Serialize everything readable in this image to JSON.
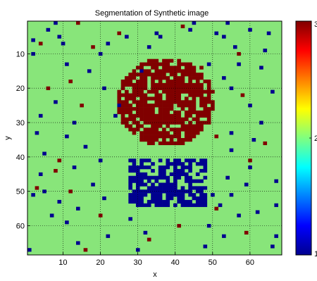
{
  "chart_data": {
    "type": "heatmap",
    "title": "Segmentation of Synthetic image",
    "xlabel": "x",
    "ylabel": "y",
    "xlim": [
      0.5,
      68.5
    ],
    "ylim": [
      0.5,
      68.5
    ],
    "y_reversed": true,
    "xticks": [
      10,
      20,
      30,
      40,
      50,
      60
    ],
    "yticks": [
      10,
      20,
      30,
      40,
      50,
      60
    ],
    "grid": true,
    "colormap": "jet",
    "clim": [
      1,
      3
    ],
    "colorbar_ticks": [
      1,
      2,
      3
    ],
    "colorbar_tick_labels": [
      "1",
      "2",
      "3"
    ],
    "classes": [
      {
        "value": 1,
        "color": "#00008f"
      },
      {
        "value": 2,
        "color": "#88e57a"
      },
      {
        "value": 3,
        "color": "#800000"
      }
    ],
    "grid_size": [
      68,
      68
    ],
    "background_value": 2,
    "regions": [
      {
        "shape": "disc",
        "value": 3,
        "center": [
          37.5,
          24
        ],
        "radius": 13,
        "fill_fraction": 0.8
      },
      {
        "shape": "rect",
        "value": 1,
        "x": [
          28,
          48
        ],
        "y": [
          41,
          54
        ],
        "fill_fraction": 0.7
      }
    ],
    "noise_pixels_value_1": [
      [
        8,
        1
      ],
      [
        45,
        1
      ],
      [
        54,
        1
      ],
      [
        6,
        3
      ],
      [
        44,
        3
      ],
      [
        60,
        3
      ],
      [
        35,
        4
      ],
      [
        51,
        4
      ],
      [
        9,
        5
      ],
      [
        27,
        5
      ],
      [
        36,
        5
      ],
      [
        53,
        5
      ],
      [
        65,
        4
      ],
      [
        2,
        6
      ],
      [
        10,
        7
      ],
      [
        22,
        7
      ],
      [
        33,
        8
      ],
      [
        56,
        8
      ],
      [
        64,
        9
      ],
      [
        20,
        10
      ],
      [
        2,
        10
      ],
      [
        49,
        13
      ],
      [
        11,
        13
      ],
      [
        17,
        15
      ],
      [
        31,
        15
      ],
      [
        57,
        13
      ],
      [
        63,
        14
      ],
      [
        53,
        17
      ],
      [
        55,
        20
      ],
      [
        66,
        21
      ],
      [
        21,
        20
      ],
      [
        8,
        24
      ],
      [
        25,
        25
      ],
      [
        60,
        25
      ],
      [
        4,
        28
      ],
      [
        24,
        28
      ],
      [
        13,
        30
      ],
      [
        63,
        30
      ],
      [
        3,
        33
      ],
      [
        55,
        33
      ],
      [
        11,
        34
      ],
      [
        61,
        35
      ],
      [
        16,
        37
      ],
      [
        55,
        38
      ],
      [
        5,
        39
      ],
      [
        20,
        41
      ],
      [
        13,
        43
      ],
      [
        48,
        42
      ],
      [
        60,
        43
      ],
      [
        4,
        45
      ],
      [
        54,
        46
      ],
      [
        67,
        47
      ],
      [
        18,
        48
      ],
      [
        59,
        48
      ],
      [
        5,
        50
      ],
      [
        2,
        51
      ],
      [
        50,
        51
      ],
      [
        21,
        52
      ],
      [
        55,
        51
      ],
      [
        9,
        53
      ],
      [
        67,
        54
      ],
      [
        14,
        55
      ],
      [
        52,
        54
      ],
      [
        62,
        56
      ],
      [
        7,
        57
      ],
      [
        28,
        58
      ],
      [
        57,
        57
      ],
      [
        11,
        59
      ],
      [
        49,
        60
      ],
      [
        32,
        62
      ],
      [
        22,
        63
      ],
      [
        53,
        63
      ],
      [
        67,
        63
      ],
      [
        14,
        65
      ],
      [
        48,
        66
      ],
      [
        1,
        67
      ],
      [
        30,
        67
      ],
      [
        66,
        66
      ]
    ],
    "noise_pixels_value_3": [
      [
        14,
        1
      ],
      [
        42,
        2
      ],
      [
        25,
        4
      ],
      [
        4,
        7
      ],
      [
        18,
        8
      ],
      [
        57,
        10
      ],
      [
        47,
        14
      ],
      [
        12,
        18
      ],
      [
        6,
        20
      ],
      [
        58,
        22
      ],
      [
        15,
        25
      ],
      [
        44,
        31
      ],
      [
        51,
        34
      ],
      [
        64,
        36
      ],
      [
        9,
        41
      ],
      [
        60,
        41
      ],
      [
        8,
        44
      ],
      [
        3,
        49
      ],
      [
        12,
        50
      ],
      [
        51,
        55
      ],
      [
        20,
        57
      ],
      [
        41,
        60
      ],
      [
        59,
        62
      ],
      [
        33,
        64
      ],
      [
        16,
        67
      ]
    ]
  }
}
